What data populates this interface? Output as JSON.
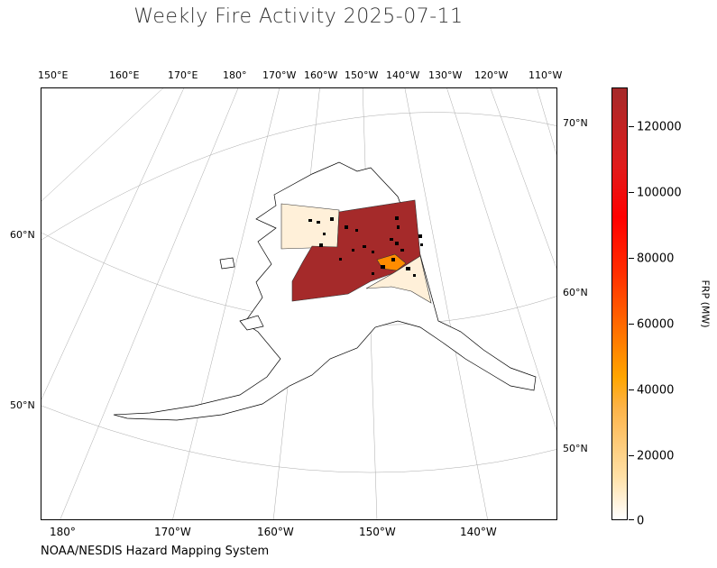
{
  "title": "Weekly Fire Activity 2025-07-11",
  "credit": "NOAA/NESDIS Hazard Mapping System",
  "map": {
    "top_labels": [
      "150°E",
      "160°E",
      "170°E",
      "180°",
      "170°W",
      "160°W",
      "150°W",
      "140°W",
      "130°W",
      "120°W",
      "110°W"
    ],
    "bottom_labels": [
      "180°",
      "170°W",
      "160°W",
      "150°W",
      "140°W"
    ],
    "left_labels": [
      "60°N",
      "50°N"
    ],
    "right_labels": [
      "70°N",
      "60°N",
      "50°N"
    ],
    "region": "Alaska",
    "fire_colors": {
      "high": "#a52a2a",
      "mid": "#ff8c00",
      "low": "#fff0d9"
    }
  },
  "colorbar": {
    "label": "FRP (MW)",
    "ticks": [
      "0",
      "20000",
      "40000",
      "60000",
      "80000",
      "100000",
      "120000"
    ],
    "min": 0,
    "max": 130000
  }
}
